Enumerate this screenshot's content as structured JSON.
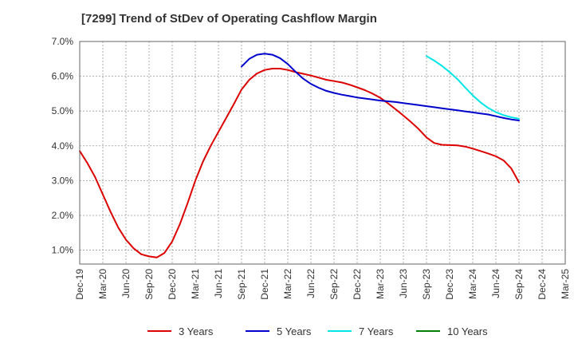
{
  "chart_data": {
    "type": "line",
    "title": "[7299]  Trend of StDev of Operating Cashflow Margin",
    "xlabel": "",
    "ylabel": "",
    "x_ticks": [
      "Dec-19",
      "Mar-20",
      "Jun-20",
      "Sep-20",
      "Dec-20",
      "Mar-21",
      "Jun-21",
      "Sep-21",
      "Dec-21",
      "Mar-22",
      "Jun-22",
      "Sep-22",
      "Dec-22",
      "Mar-23",
      "Jun-23",
      "Sep-23",
      "Dec-23",
      "Mar-24",
      "Jun-24",
      "Sep-24",
      "Dec-24",
      "Mar-25"
    ],
    "y_ticks": [
      "1.0%",
      "2.0%",
      "3.0%",
      "4.0%",
      "5.0%",
      "6.0%",
      "7.0%"
    ],
    "ylim": [
      0.6,
      7.0
    ],
    "grid": true,
    "legend_position": "bottom",
    "series": [
      {
        "name": "3 Years",
        "color": "#dd0000",
        "x": [
          "2019-12",
          "2020-01",
          "2020-02",
          "2020-03",
          "2020-04",
          "2020-05",
          "2020-06",
          "2020-07",
          "2020-08",
          "2020-09",
          "2020-10",
          "2020-11",
          "2020-12",
          "2021-01",
          "2021-02",
          "2021-03",
          "2021-04",
          "2021-05",
          "2021-06",
          "2021-07",
          "2021-08",
          "2021-09",
          "2021-10",
          "2021-11",
          "2021-12",
          "2022-01",
          "2022-02",
          "2022-03",
          "2022-04",
          "2022-05",
          "2022-06",
          "2022-07",
          "2022-08",
          "2022-09",
          "2022-10",
          "2022-11",
          "2022-12",
          "2023-01",
          "2023-02",
          "2023-03",
          "2023-04",
          "2023-05",
          "2023-06",
          "2023-07",
          "2023-08",
          "2023-09",
          "2023-10",
          "2023-11",
          "2023-12",
          "2024-01",
          "2024-02",
          "2024-03",
          "2024-04",
          "2024-05",
          "2024-06",
          "2024-07",
          "2024-08",
          "2024-09"
        ],
        "values": [
          3.85,
          3.5,
          3.1,
          2.6,
          2.1,
          1.65,
          1.3,
          1.05,
          0.88,
          0.82,
          0.79,
          0.92,
          1.25,
          1.75,
          2.35,
          3.0,
          3.55,
          4.0,
          4.4,
          4.8,
          5.2,
          5.62,
          5.9,
          6.08,
          6.18,
          6.22,
          6.22,
          6.18,
          6.12,
          6.07,
          6.02,
          5.96,
          5.9,
          5.86,
          5.82,
          5.76,
          5.68,
          5.6,
          5.5,
          5.38,
          5.22,
          5.05,
          4.87,
          4.68,
          4.48,
          4.24,
          4.08,
          4.03,
          4.02,
          4.01,
          3.98,
          3.92,
          3.85,
          3.78,
          3.7,
          3.58,
          3.35,
          2.95
        ]
      },
      {
        "name": "5 Years",
        "color": "#0000cc",
        "x": [
          "2021-09",
          "2021-10",
          "2021-11",
          "2021-12",
          "2022-01",
          "2022-02",
          "2022-03",
          "2022-04",
          "2022-05",
          "2022-06",
          "2022-07",
          "2022-08",
          "2022-09",
          "2022-10",
          "2022-11",
          "2022-12",
          "2023-01",
          "2023-02",
          "2023-03",
          "2023-04",
          "2023-05",
          "2023-06",
          "2023-07",
          "2023-08",
          "2023-09",
          "2023-10",
          "2023-11",
          "2023-12",
          "2024-01",
          "2024-02",
          "2024-03",
          "2024-04",
          "2024-05",
          "2024-06",
          "2024-07",
          "2024-08",
          "2024-09"
        ],
        "values": [
          6.28,
          6.5,
          6.62,
          6.65,
          6.62,
          6.52,
          6.35,
          6.13,
          5.93,
          5.78,
          5.67,
          5.58,
          5.52,
          5.47,
          5.43,
          5.39,
          5.36,
          5.33,
          5.3,
          5.28,
          5.26,
          5.23,
          5.2,
          5.17,
          5.14,
          5.11,
          5.08,
          5.05,
          5.02,
          4.99,
          4.96,
          4.93,
          4.9,
          4.85,
          4.8,
          4.76,
          4.73
        ]
      },
      {
        "name": "7 Years",
        "color": "#00e5e5",
        "x": [
          "2023-09",
          "2023-10",
          "2023-11",
          "2023-12",
          "2024-01",
          "2024-02",
          "2024-03",
          "2024-04",
          "2024-05",
          "2024-06",
          "2024-07",
          "2024-08",
          "2024-09"
        ],
        "values": [
          6.58,
          6.45,
          6.3,
          6.12,
          5.92,
          5.68,
          5.45,
          5.25,
          5.09,
          4.97,
          4.88,
          4.82,
          4.78
        ]
      },
      {
        "name": "10 Years",
        "color": "#008000",
        "x": [],
        "values": []
      }
    ]
  }
}
